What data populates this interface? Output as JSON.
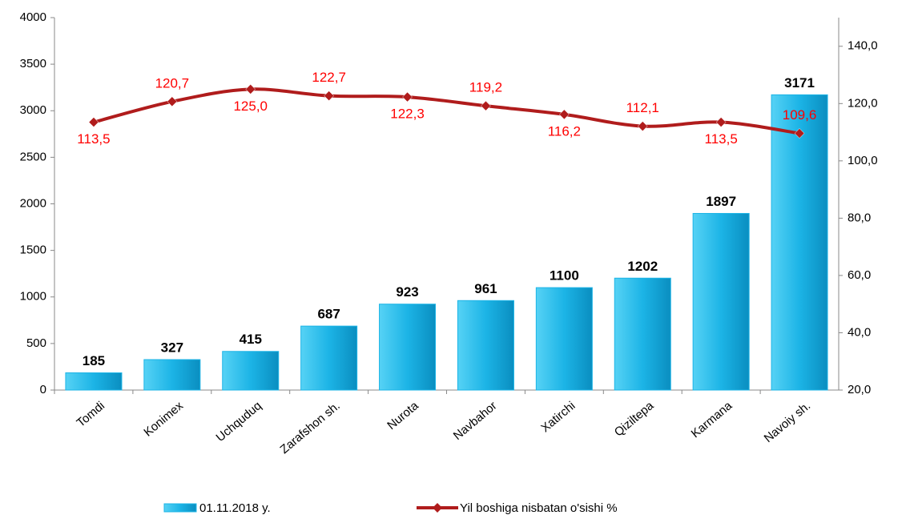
{
  "chart_data": {
    "type": "bar",
    "categories": [
      "Tomdi",
      "Konimex",
      "Uchquduq",
      "Zarafshon sh.",
      "Nurota",
      "Navbahor",
      "Xatirchi",
      "Qiziltepa",
      "Karmana",
      "Navoiy sh."
    ],
    "series": [
      {
        "name": "01.11.2018 y.",
        "type": "bar",
        "color": "#1cb4e6",
        "values": [
          185,
          327,
          415,
          687,
          923,
          961,
          1100,
          1202,
          1897,
          3171
        ]
      },
      {
        "name": "Yil boshiga nisbatan o'sishi %",
        "type": "line",
        "axis": "y2",
        "color": "#b01c1c",
        "values": [
          113.5,
          120.7,
          125.0,
          122.7,
          122.3,
          119.2,
          116.2,
          112.1,
          113.5,
          109.6
        ],
        "value_labels": [
          "113,5",
          "120,7",
          "125,0",
          "122,7",
          "122,3",
          "119,2",
          "116,2",
          "112,1",
          "113,5",
          "109,6"
        ]
      }
    ],
    "ylim": [
      0,
      4000
    ],
    "yticks": [
      0,
      500,
      1000,
      1500,
      2000,
      2500,
      3000,
      3500,
      4000
    ],
    "y2lim": [
      20,
      150
    ],
    "y2ticks": [
      {
        "value": 20,
        "label": "20,0"
      },
      {
        "value": 40,
        "label": "40,0"
      },
      {
        "value": 60,
        "label": "60,0"
      },
      {
        "value": 80,
        "label": "80,0"
      },
      {
        "value": 100,
        "label": "100,0"
      },
      {
        "value": 120,
        "label": "120,0"
      },
      {
        "value": 140,
        "label": "140,0"
      }
    ],
    "grid": false,
    "legend": "bottom"
  }
}
